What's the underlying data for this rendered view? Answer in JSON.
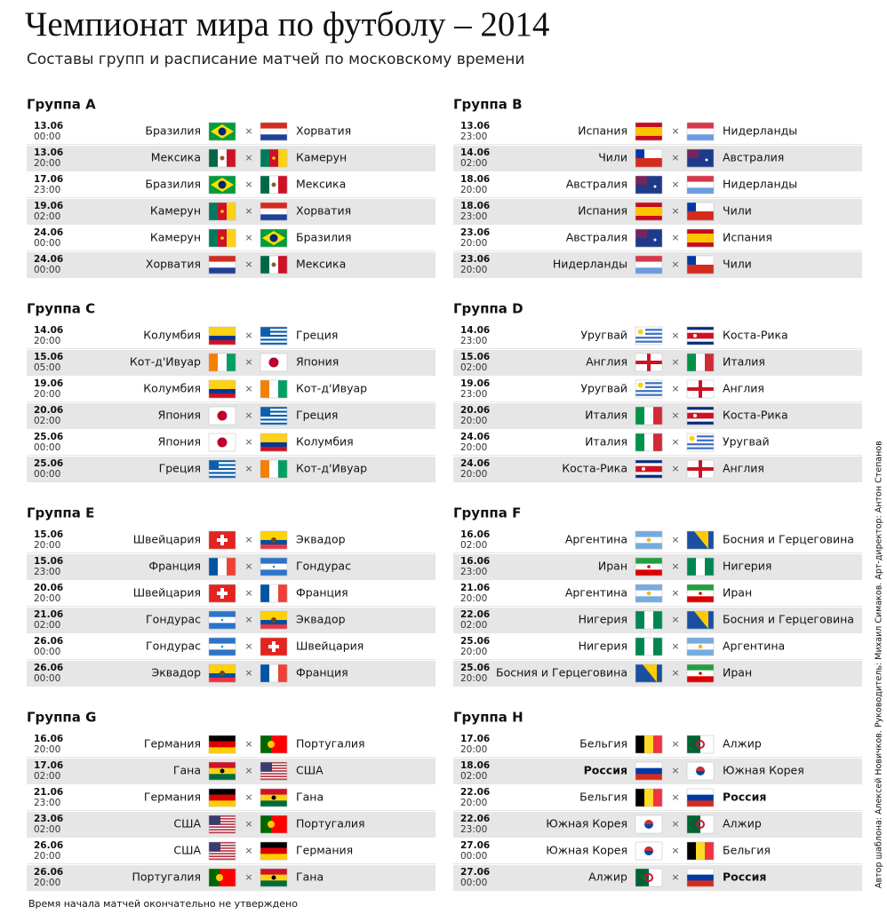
{
  "header": {
    "title": "Чемпионат мира по футболу – 2014",
    "subtitle": "Составы групп и расписание матчей по московскому времени"
  },
  "separator": "×",
  "groups": [
    {
      "name": "Группа A",
      "matches": [
        {
          "date": "13.06",
          "time": "00:00",
          "home": "Бразилия",
          "away": "Хорватия"
        },
        {
          "date": "13.06",
          "time": "20:00",
          "home": "Мексика",
          "away": "Камерун"
        },
        {
          "date": "17.06",
          "time": "23:00",
          "home": "Бразилия",
          "away": "Мексика"
        },
        {
          "date": "19.06",
          "time": "02:00",
          "home": "Камерун",
          "away": "Хорватия"
        },
        {
          "date": "24.06",
          "time": "00:00",
          "home": "Камерун",
          "away": "Бразилия"
        },
        {
          "date": "24.06",
          "time": "00:00",
          "home": "Хорватия",
          "away": "Мексика"
        }
      ]
    },
    {
      "name": "Группа B",
      "matches": [
        {
          "date": "13.06",
          "time": "23:00",
          "home": "Испания",
          "away": "Нидерланды"
        },
        {
          "date": "14.06",
          "time": "02:00",
          "home": "Чили",
          "away": "Австралия"
        },
        {
          "date": "18.06",
          "time": "20:00",
          "home": "Австралия",
          "away": "Нидерланды"
        },
        {
          "date": "18.06",
          "time": "23:00",
          "home": "Испания",
          "away": "Чили"
        },
        {
          "date": "23.06",
          "time": "20:00",
          "home": "Австралия",
          "away": "Испания"
        },
        {
          "date": "23.06",
          "time": "20:00",
          "home": "Нидерланды",
          "away": "Чили"
        }
      ]
    },
    {
      "name": "Группа C",
      "matches": [
        {
          "date": "14.06",
          "time": "20:00",
          "home": "Колумбия",
          "away": "Греция"
        },
        {
          "date": "15.06",
          "time": "05:00",
          "home": "Кот-д'Ивуар",
          "away": "Япония"
        },
        {
          "date": "19.06",
          "time": "20:00",
          "home": "Колумбия",
          "away": "Кот-д'Ивуар"
        },
        {
          "date": "20.06",
          "time": "02:00",
          "home": "Япония",
          "away": "Греция"
        },
        {
          "date": "25.06",
          "time": "00:00",
          "home": "Япония",
          "away": "Колумбия"
        },
        {
          "date": "25.06",
          "time": "00:00",
          "home": "Греция",
          "away": "Кот-д'Ивуар"
        }
      ]
    },
    {
      "name": "Группа D",
      "matches": [
        {
          "date": "14.06",
          "time": "23:00",
          "home": "Уругвай",
          "away": "Коста-Рика"
        },
        {
          "date": "15.06",
          "time": "02:00",
          "home": "Англия",
          "away": "Италия"
        },
        {
          "date": "19.06",
          "time": "23:00",
          "home": "Уругвай",
          "away": "Англия"
        },
        {
          "date": "20.06",
          "time": "20:00",
          "home": "Италия",
          "away": "Коста-Рика"
        },
        {
          "date": "24.06",
          "time": "20:00",
          "home": "Италия",
          "away": "Уругвай"
        },
        {
          "date": "24.06",
          "time": "20:00",
          "home": "Коста-Рика",
          "away": "Англия"
        }
      ]
    },
    {
      "name": "Группа E",
      "matches": [
        {
          "date": "15.06",
          "time": "20:00",
          "home": "Швейцария",
          "away": "Эквадор"
        },
        {
          "date": "15.06",
          "time": "23:00",
          "home": "Франция",
          "away": "Гондурас"
        },
        {
          "date": "20.06",
          "time": "20:00",
          "home": "Швейцария",
          "away": "Франция"
        },
        {
          "date": "21.06",
          "time": "02:00",
          "home": "Гондурас",
          "away": "Эквадор"
        },
        {
          "date": "26.06",
          "time": "00:00",
          "home": "Гондурас",
          "away": "Швейцария"
        },
        {
          "date": "26.06",
          "time": "00:00",
          "home": "Эквадор",
          "away": "Франция"
        }
      ]
    },
    {
      "name": "Группа F",
      "matches": [
        {
          "date": "16.06",
          "time": "02:00",
          "home": "Аргентина",
          "away": "Босния и Герцеговина"
        },
        {
          "date": "16.06",
          "time": "23:00",
          "home": "Иран",
          "away": "Нигерия"
        },
        {
          "date": "21.06",
          "time": "20:00",
          "home": "Аргентина",
          "away": "Иран"
        },
        {
          "date": "22.06",
          "time": "02:00",
          "home": "Нигерия",
          "away": "Босния и Герцеговина"
        },
        {
          "date": "25.06",
          "time": "20:00",
          "home": "Нигерия",
          "away": "Аргентина"
        },
        {
          "date": "25.06",
          "time": "20:00",
          "home": "Босния и Герцеговина",
          "away": "Иран"
        }
      ]
    },
    {
      "name": "Группа G",
      "matches": [
        {
          "date": "16.06",
          "time": "20:00",
          "home": "Германия",
          "away": "Португалия"
        },
        {
          "date": "17.06",
          "time": "02:00",
          "home": "Гана",
          "away": "США"
        },
        {
          "date": "21.06",
          "time": "23:00",
          "home": "Германия",
          "away": "Гана"
        },
        {
          "date": "23.06",
          "time": "02:00",
          "home": "США",
          "away": "Португалия"
        },
        {
          "date": "26.06",
          "time": "20:00",
          "home": "США",
          "away": "Германия"
        },
        {
          "date": "26.06",
          "time": "20:00",
          "home": "Португалия",
          "away": "Гана"
        }
      ]
    },
    {
      "name": "Группа H",
      "matches": [
        {
          "date": "17.06",
          "time": "20:00",
          "home": "Бельгия",
          "away": "Алжир"
        },
        {
          "date": "18.06",
          "time": "02:00",
          "home": "Россия",
          "away": "Южная Корея"
        },
        {
          "date": "22.06",
          "time": "20:00",
          "home": "Бельгия",
          "away": "Россия"
        },
        {
          "date": "22.06",
          "time": "23:00",
          "home": "Южная Корея",
          "away": "Алжир"
        },
        {
          "date": "27.06",
          "time": "00:00",
          "home": "Южная Корея",
          "away": "Бельгия"
        },
        {
          "date": "27.06",
          "time": "00:00",
          "home": "Алжир",
          "away": "Россия"
        }
      ]
    }
  ],
  "footnote": "Время начала матчей окончательно не утверждено",
  "credits": "Автор шаблона: Алексей Новичков. Руководитель: Михаил Симаков. Арт-директор: Антон Степанов"
}
